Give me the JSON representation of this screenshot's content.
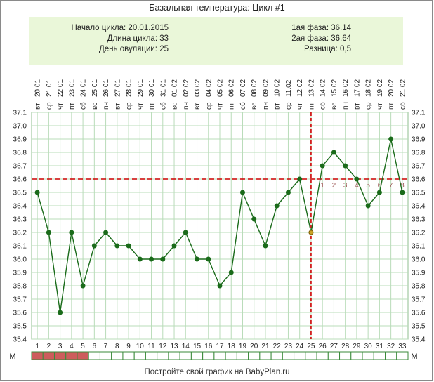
{
  "title": "Базальная температура: Цикл #1",
  "info": {
    "cycle_start": "Начало цикла: 20.01.2015",
    "cycle_length": "Длина цикла: 33",
    "ovulation_day": "День овуляции: 25",
    "phase1": "1ая фаза: 36.14",
    "phase2": "2ая фаза: 36.64",
    "difference": "Разница: 0,5"
  },
  "footer": "Постройте свой график на BabyPlan.ru",
  "m_label": "М",
  "colors": {
    "line": "#1a6b1a",
    "grid": "#b9dcb9",
    "red": "#cc0000",
    "menses": "#cd5c5c",
    "marker_ovulation": "#c9a227"
  },
  "chart_data": {
    "type": "line",
    "x": [
      1,
      2,
      3,
      4,
      5,
      6,
      7,
      8,
      9,
      10,
      11,
      12,
      13,
      14,
      15,
      16,
      17,
      18,
      19,
      20,
      21,
      22,
      23,
      24,
      25,
      26,
      27,
      28,
      29,
      30,
      31,
      32,
      33
    ],
    "dates": [
      "20.01",
      "21.01",
      "22.01",
      "23.01",
      "24.01",
      "25.01",
      "26.01",
      "27.01",
      "28.01",
      "29.01",
      "30.01",
      "31.01",
      "01.02",
      "02.02",
      "03.02",
      "04.02",
      "05.02",
      "06.02",
      "07.02",
      "08.02",
      "09.02",
      "10.02",
      "11.02",
      "12.02",
      "13.02",
      "14.02",
      "15.02",
      "16.02",
      "17.02",
      "18.02",
      "19.02",
      "20.02",
      "21.02"
    ],
    "weekdays": [
      "вт",
      "ср",
      "чт",
      "пт",
      "сб",
      "вс",
      "пн",
      "вт",
      "ср",
      "чт",
      "пт",
      "сб",
      "вс",
      "пн",
      "вт",
      "ср",
      "чт",
      "пт",
      "сб",
      "вс",
      "пн",
      "вт",
      "ср",
      "чт",
      "пт",
      "сб",
      "вс",
      "пн",
      "вт",
      "ср",
      "чт",
      "пт",
      "сб"
    ],
    "values": [
      36.5,
      36.2,
      35.6,
      36.2,
      35.8,
      36.1,
      36.2,
      36.1,
      36.1,
      36.0,
      36.0,
      36.0,
      36.1,
      36.2,
      36.0,
      36.0,
      35.8,
      35.9,
      36.5,
      36.3,
      36.1,
      36.4,
      36.5,
      36.6,
      36.2,
      36.7,
      36.8,
      36.7,
      36.6,
      36.4,
      36.5,
      36.9,
      36.5
    ],
    "ylim": [
      35.4,
      37.1
    ],
    "yticks": [
      "35.4",
      "35.5",
      "35.6",
      "35.7",
      "35.8",
      "35.9",
      "36.0",
      "36.1",
      "36.2",
      "36.3",
      "36.4",
      "36.5",
      "36.6",
      "36.7",
      "36.8",
      "36.9",
      "37.0",
      "37.1"
    ],
    "cover_line": 36.6,
    "ovulation_day": 25,
    "phase2_labels": [
      "1",
      "2",
      "3",
      "4",
      "5",
      "6",
      "7",
      "8"
    ],
    "menses_days": [
      1,
      2,
      3,
      4,
      5
    ],
    "grid": true
  }
}
